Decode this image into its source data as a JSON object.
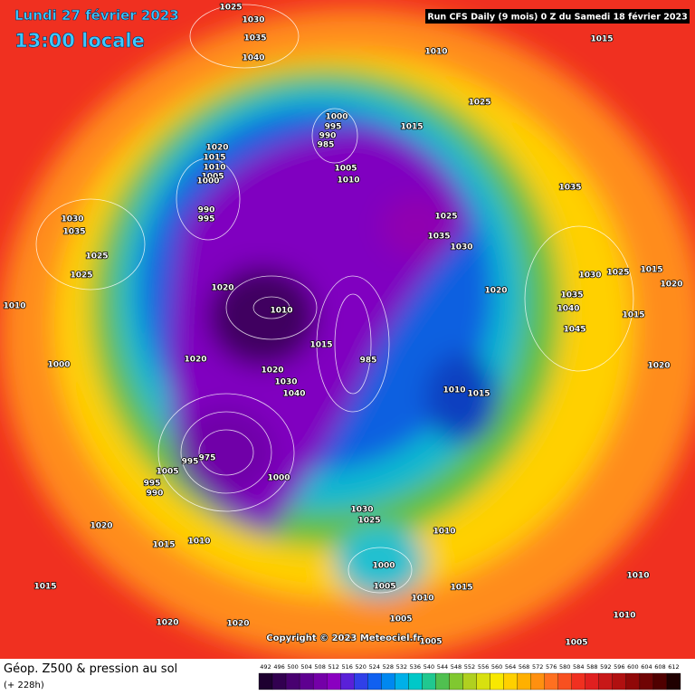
{
  "header": {
    "date": "Lundi 27 février 2023",
    "time": "13:00 locale",
    "run": "Run CFS Daily (9 mois) 0 Z du Samedi 18 février 2023"
  },
  "footer": {
    "title": "Géop. Z500 & pression au sol",
    "lead": "(+ 228h)",
    "copyright": "Copyright © 2023 Meteociel.fr"
  },
  "scale": {
    "values": [
      492,
      496,
      500,
      504,
      508,
      512,
      516,
      520,
      524,
      528,
      532,
      536,
      540,
      544,
      548,
      552,
      556,
      560,
      564,
      568,
      572,
      576,
      580,
      584,
      588,
      592,
      596,
      600,
      604,
      608,
      612
    ],
    "colors": [
      "#1e0030",
      "#320050",
      "#480070",
      "#5e0090",
      "#7400a8",
      "#8a00c0",
      "#5a20d8",
      "#3040e8",
      "#1060f0",
      "#0088f0",
      "#00b0e8",
      "#00c8c8",
      "#20c890",
      "#50c050",
      "#80c830",
      "#b0d020",
      "#d8e010",
      "#f8e800",
      "#ffd000",
      "#ffb000",
      "#ff9010",
      "#ff7020",
      "#f85020",
      "#f03020",
      "#e02020",
      "#c81818",
      "#b01010",
      "#900808",
      "#700404",
      "#500000",
      "#200000"
    ]
  },
  "pressure_labels": [
    "1025",
    "1030",
    "1035",
    "1040",
    "1010",
    "1015",
    "1025",
    "1000",
    "995",
    "990",
    "985",
    "1015",
    "1020",
    "1015",
    "1010",
    "1005",
    "1000",
    "990",
    "995",
    "1005",
    "1010",
    "1035",
    "1025",
    "1035",
    "1030",
    "1030",
    "1035",
    "1025",
    "1025",
    "1020",
    "1010",
    "1020",
    "1030",
    "1025",
    "1015",
    "1035",
    "1040",
    "1015",
    "1020",
    "1010",
    "1045",
    "1015",
    "985",
    "1020",
    "1020",
    "1010",
    "1015",
    "1000",
    "1020",
    "1030",
    "1040",
    "975",
    "995",
    "1005",
    "1000",
    "995",
    "990",
    "1030",
    "1025",
    "1010",
    "1020",
    "1015",
    "1010",
    "1000",
    "1005",
    "1015",
    "1010",
    "1010",
    "1015",
    "1020",
    "1020",
    "1005",
    "1010",
    "1005",
    "1005"
  ]
}
